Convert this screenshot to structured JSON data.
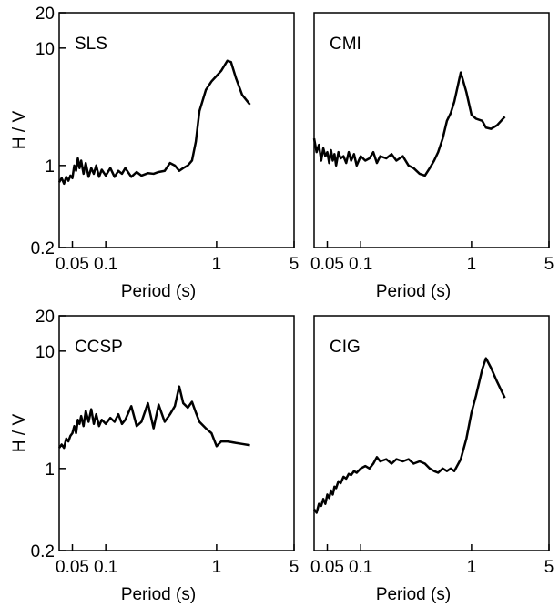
{
  "chart_data": [
    {
      "type": "line",
      "label": "SLS",
      "xlabel": "Period (s)",
      "ylabel": "H / V",
      "xscale": "log",
      "yscale": "log",
      "color": "#000000",
      "xlim": [
        0.038,
        5
      ],
      "ylim": [
        0.2,
        20
      ],
      "xticks": [
        0.05,
        0.1,
        1,
        5
      ],
      "yticks": [
        0.2,
        1,
        10,
        20
      ],
      "x": [
        0.038,
        0.04,
        0.042,
        0.044,
        0.046,
        0.048,
        0.05,
        0.052,
        0.054,
        0.056,
        0.058,
        0.06,
        0.063,
        0.066,
        0.07,
        0.074,
        0.078,
        0.082,
        0.087,
        0.092,
        0.1,
        0.11,
        0.12,
        0.13,
        0.14,
        0.15,
        0.17,
        0.19,
        0.21,
        0.24,
        0.27,
        0.3,
        0.34,
        0.38,
        0.42,
        0.46,
        0.5,
        0.55,
        0.6,
        0.65,
        0.7,
        0.8,
        0.9,
        1.0,
        1.1,
        1.25,
        1.35,
        1.5,
        1.7,
        2.0
      ],
      "values": [
        0.72,
        0.78,
        0.7,
        0.8,
        0.74,
        0.82,
        0.78,
        1.0,
        0.9,
        1.15,
        0.95,
        1.1,
        0.85,
        1.05,
        0.8,
        0.95,
        0.85,
        1.0,
        0.8,
        0.92,
        0.82,
        0.95,
        0.8,
        0.9,
        0.85,
        0.95,
        0.8,
        0.88,
        0.82,
        0.86,
        0.85,
        0.88,
        0.9,
        1.05,
        1.0,
        0.9,
        0.95,
        1.0,
        1.1,
        1.6,
        2.9,
        4.4,
        5.2,
        5.8,
        6.4,
        7.8,
        7.6,
        5.5,
        4.0,
        3.3
      ]
    },
    {
      "type": "line",
      "label": "CMI",
      "xlabel": "Period (s)",
      "xscale": "log",
      "yscale": "log",
      "color": "#000000",
      "xlim": [
        0.038,
        5
      ],
      "ylim": [
        0.2,
        20
      ],
      "xticks": [
        0.05,
        0.1,
        1,
        5
      ],
      "x": [
        0.038,
        0.04,
        0.042,
        0.044,
        0.046,
        0.048,
        0.05,
        0.052,
        0.054,
        0.056,
        0.058,
        0.06,
        0.063,
        0.066,
        0.07,
        0.074,
        0.078,
        0.082,
        0.087,
        0.092,
        0.1,
        0.11,
        0.12,
        0.13,
        0.14,
        0.15,
        0.17,
        0.19,
        0.21,
        0.24,
        0.27,
        0.3,
        0.34,
        0.38,
        0.42,
        0.46,
        0.5,
        0.55,
        0.6,
        0.65,
        0.7,
        0.8,
        0.9,
        1.0,
        1.1,
        1.25,
        1.35,
        1.5,
        1.7,
        2.0
      ],
      "values": [
        1.7,
        1.3,
        1.5,
        1.1,
        1.4,
        1.2,
        1.3,
        1.05,
        1.35,
        1.1,
        1.25,
        1.0,
        1.3,
        1.15,
        1.2,
        1.05,
        1.3,
        1.1,
        1.25,
        1.0,
        1.2,
        1.1,
        1.15,
        1.3,
        1.05,
        1.2,
        1.15,
        1.25,
        1.1,
        1.2,
        1.0,
        0.95,
        0.85,
        0.82,
        0.95,
        1.1,
        1.3,
        1.7,
        2.4,
        2.8,
        3.5,
        6.2,
        4.2,
        2.7,
        2.5,
        2.4,
        2.1,
        2.05,
        2.2,
        2.6
      ]
    },
    {
      "type": "line",
      "label": "CCSP",
      "xlabel": "Period (s)",
      "ylabel": "H / V",
      "xscale": "log",
      "yscale": "log",
      "color": "#000000",
      "xlim": [
        0.038,
        5
      ],
      "ylim": [
        0.2,
        20
      ],
      "xticks": [
        0.05,
        0.1,
        1,
        5
      ],
      "yticks": [
        0.2,
        1,
        10,
        20
      ],
      "x": [
        0.038,
        0.04,
        0.042,
        0.044,
        0.046,
        0.048,
        0.05,
        0.052,
        0.054,
        0.056,
        0.058,
        0.06,
        0.063,
        0.066,
        0.07,
        0.074,
        0.078,
        0.082,
        0.087,
        0.092,
        0.1,
        0.11,
        0.12,
        0.13,
        0.14,
        0.15,
        0.17,
        0.19,
        0.21,
        0.24,
        0.27,
        0.3,
        0.34,
        0.38,
        0.42,
        0.46,
        0.5,
        0.55,
        0.6,
        0.65,
        0.7,
        0.8,
        0.9,
        1.0,
        1.1,
        1.25,
        1.35,
        1.5,
        1.7,
        2.0
      ],
      "values": [
        1.5,
        1.6,
        1.5,
        1.8,
        1.7,
        1.9,
        2.0,
        2.3,
        2.0,
        2.6,
        2.4,
        2.8,
        2.3,
        3.1,
        2.5,
        3.2,
        2.4,
        2.9,
        2.3,
        2.6,
        2.4,
        2.7,
        2.5,
        2.9,
        2.4,
        2.6,
        3.4,
        2.3,
        2.5,
        3.6,
        2.2,
        3.5,
        2.5,
        2.9,
        3.4,
        5.0,
        3.6,
        3.3,
        3.7,
        3.0,
        2.5,
        2.2,
        2.0,
        1.55,
        1.7,
        1.7,
        1.68,
        1.65,
        1.62,
        1.58
      ]
    },
    {
      "type": "line",
      "label": "CIG",
      "xlabel": "Period (s)",
      "xscale": "log",
      "yscale": "log",
      "color": "#000000",
      "xlim": [
        0.038,
        5
      ],
      "ylim": [
        0.2,
        20
      ],
      "xticks": [
        0.05,
        0.1,
        1,
        5
      ],
      "x": [
        0.038,
        0.04,
        0.042,
        0.044,
        0.046,
        0.048,
        0.05,
        0.052,
        0.054,
        0.056,
        0.058,
        0.06,
        0.063,
        0.066,
        0.07,
        0.074,
        0.078,
        0.082,
        0.087,
        0.092,
        0.1,
        0.11,
        0.12,
        0.13,
        0.14,
        0.15,
        0.17,
        0.19,
        0.21,
        0.24,
        0.27,
        0.3,
        0.34,
        0.38,
        0.42,
        0.46,
        0.5,
        0.55,
        0.6,
        0.65,
        0.7,
        0.8,
        0.9,
        1.0,
        1.1,
        1.25,
        1.35,
        1.5,
        1.7,
        2.0
      ],
      "values": [
        0.45,
        0.42,
        0.5,
        0.48,
        0.55,
        0.5,
        0.6,
        0.56,
        0.65,
        0.6,
        0.7,
        0.68,
        0.78,
        0.75,
        0.85,
        0.82,
        0.9,
        0.88,
        0.95,
        0.92,
        1.0,
        1.05,
        1.0,
        1.1,
        1.25,
        1.15,
        1.2,
        1.1,
        1.2,
        1.15,
        1.2,
        1.1,
        1.15,
        1.1,
        1.0,
        0.95,
        0.92,
        1.0,
        0.95,
        1.0,
        0.95,
        1.2,
        1.8,
        3.0,
        4.2,
        7.0,
        8.7,
        7.2,
        5.5,
        4.0
      ]
    }
  ]
}
